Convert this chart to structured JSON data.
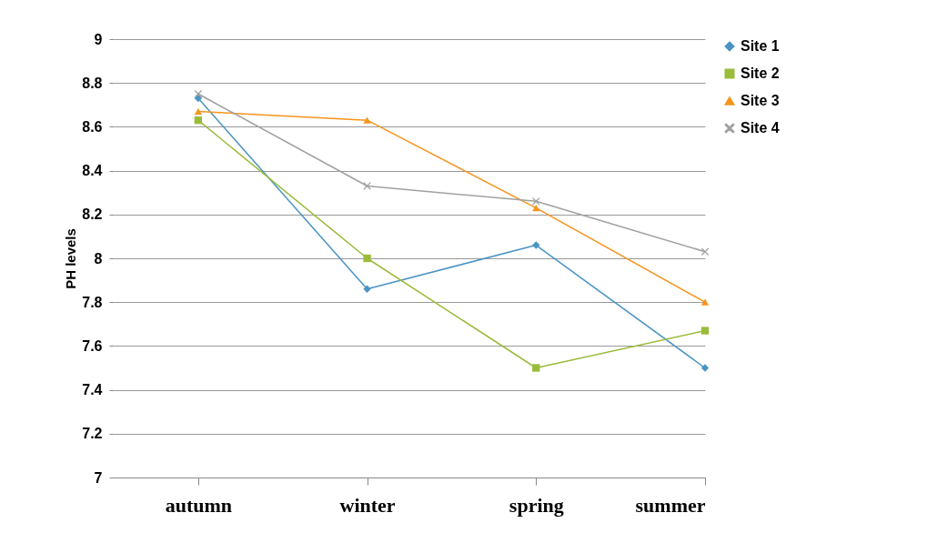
{
  "chart_data": {
    "type": "line",
    "ylabel": "PH levels",
    "categories": [
      "autumn",
      "winter",
      "spring",
      "summer"
    ],
    "series": [
      {
        "name": "Site 1",
        "color": "#4a94c4",
        "marker": "diamond",
        "values": [
          8.73,
          7.86,
          8.06,
          7.5
        ]
      },
      {
        "name": "Site 2",
        "color": "#9bbb3b",
        "marker": "square",
        "values": [
          8.63,
          8.0,
          7.5,
          7.67
        ]
      },
      {
        "name": "Site 3",
        "color": "#f7941e",
        "marker": "triangle",
        "values": [
          8.67,
          8.63,
          8.23,
          7.8
        ]
      },
      {
        "name": "Site 4",
        "color": "#a0a0a0",
        "marker": "cross",
        "values": [
          8.75,
          8.33,
          8.26,
          8.03
        ]
      }
    ],
    "ylim": [
      7,
      9
    ],
    "yticks": [
      7,
      7.2,
      7.4,
      7.6,
      7.8,
      8,
      8.2,
      8.4,
      8.6,
      8.8,
      9
    ],
    "grid": "y",
    "legend": "right"
  }
}
